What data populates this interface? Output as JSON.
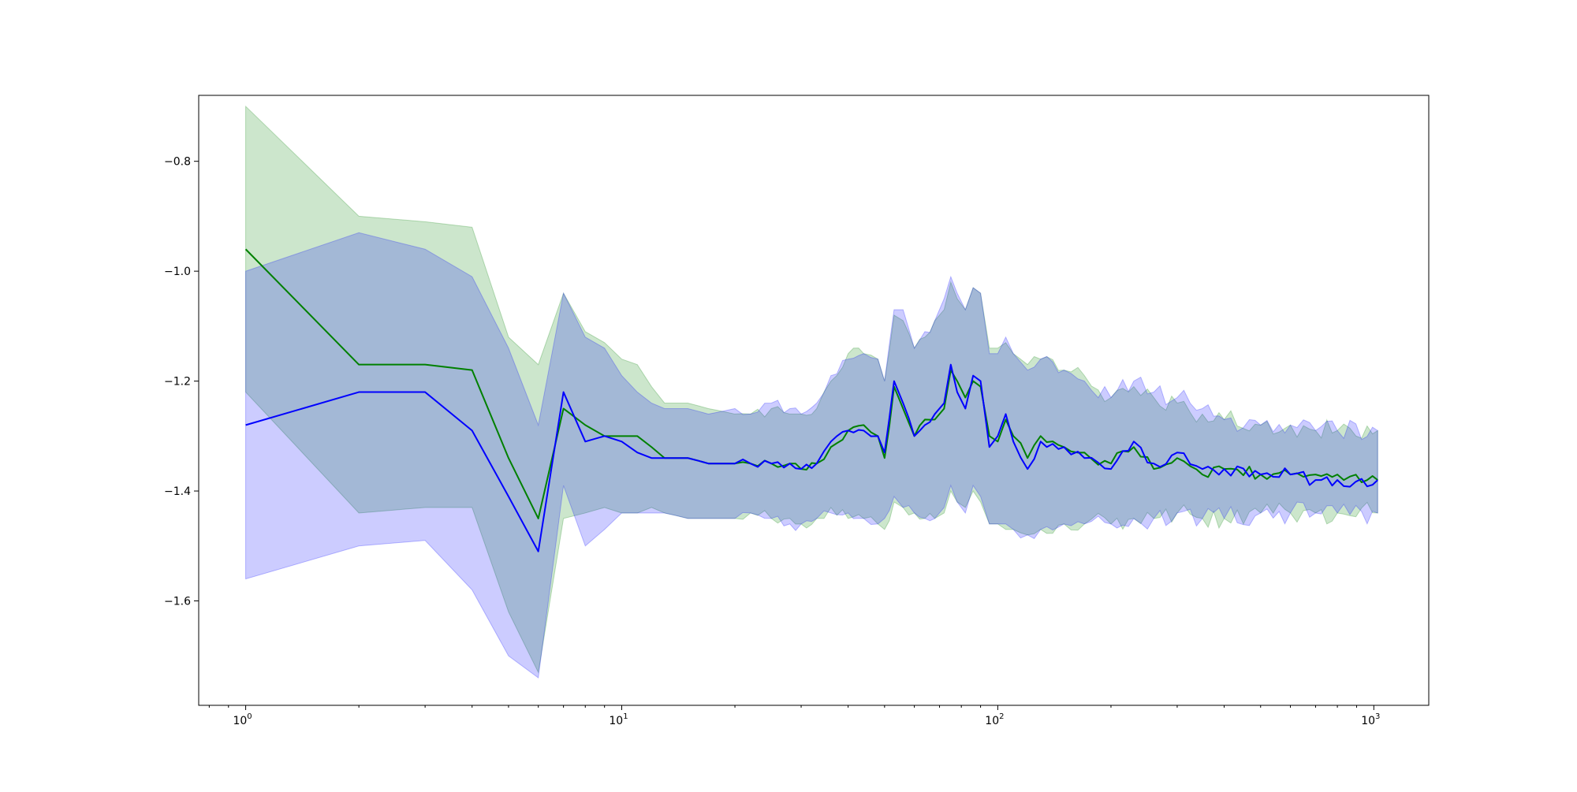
{
  "chart_data": {
    "type": "line",
    "title": "",
    "xlabel": "",
    "ylabel": "",
    "xscale": "log",
    "xlim": [
      0.75,
      1400
    ],
    "ylim": [
      -1.79,
      -0.68
    ],
    "grid": false,
    "legend": "none",
    "x_ticks": [
      {
        "value": 1,
        "base": "10",
        "exp": "0"
      },
      {
        "value": 10,
        "base": "10",
        "exp": "1"
      },
      {
        "value": 100,
        "base": "10",
        "exp": "2"
      },
      {
        "value": 1000,
        "base": "10",
        "exp": "3"
      }
    ],
    "y_ticks": [
      {
        "value": -0.8,
        "label": "−0.8"
      },
      {
        "value": -1.0,
        "label": "−1.0"
      },
      {
        "value": -1.2,
        "label": "−1.2"
      },
      {
        "value": -1.4,
        "label": "−1.4"
      },
      {
        "value": -1.6,
        "label": "−1.6"
      }
    ],
    "series": [
      {
        "color": "#008000",
        "band_color": "#008000",
        "band_opacity": 0.2,
        "anchors": [
          [
            1,
            -0.96,
            -1.22,
            -0.7
          ],
          [
            2,
            -1.17,
            -1.44,
            -0.9
          ],
          [
            3,
            -1.17,
            -1.43,
            -0.91
          ],
          [
            4,
            -1.18,
            -1.43,
            -0.92
          ],
          [
            5,
            -1.34,
            -1.62,
            -1.12
          ],
          [
            6,
            -1.45,
            -1.73,
            -1.17
          ],
          [
            7,
            -1.25,
            -1.45,
            -1.04
          ],
          [
            8,
            -1.28,
            -1.44,
            -1.11
          ],
          [
            9,
            -1.3,
            -1.43,
            -1.13
          ],
          [
            10,
            -1.3,
            -1.44,
            -1.16
          ],
          [
            11,
            -1.3,
            -1.44,
            -1.17
          ],
          [
            12,
            -1.32,
            -1.43,
            -1.21
          ],
          [
            13,
            -1.34,
            -1.44,
            -1.24
          ],
          [
            15,
            -1.34,
            -1.45,
            -1.24
          ],
          [
            17,
            -1.35,
            -1.45,
            -1.25
          ],
          [
            20,
            -1.35,
            -1.45,
            -1.26
          ],
          [
            22,
            -1.35,
            -1.44,
            -1.26
          ],
          [
            25,
            -1.35,
            -1.45,
            -1.25
          ],
          [
            28,
            -1.35,
            -1.45,
            -1.26
          ],
          [
            30,
            -1.36,
            -1.46,
            -1.26
          ],
          [
            33,
            -1.35,
            -1.45,
            -1.25
          ],
          [
            36,
            -1.32,
            -1.43,
            -1.2
          ],
          [
            40,
            -1.29,
            -1.45,
            -1.15
          ],
          [
            44,
            -1.28,
            -1.45,
            -1.15
          ],
          [
            48,
            -1.3,
            -1.46,
            -1.16
          ],
          [
            50,
            -1.34,
            -1.47,
            -1.2
          ],
          [
            53,
            -1.21,
            -1.42,
            -1.08
          ],
          [
            56,
            -1.25,
            -1.43,
            -1.09
          ],
          [
            60,
            -1.3,
            -1.44,
            -1.14
          ],
          [
            64,
            -1.27,
            -1.45,
            -1.12
          ],
          [
            68,
            -1.27,
            -1.45,
            -1.09
          ],
          [
            72,
            -1.25,
            -1.44,
            -1.07
          ],
          [
            75,
            -1.18,
            -1.4,
            -1.02
          ],
          [
            78,
            -1.2,
            -1.42,
            -1.05
          ],
          [
            82,
            -1.23,
            -1.43,
            -1.07
          ],
          [
            86,
            -1.2,
            -1.4,
            -1.03
          ],
          [
            90,
            -1.21,
            -1.42,
            -1.04
          ],
          [
            95,
            -1.3,
            -1.46,
            -1.14
          ],
          [
            100,
            -1.31,
            -1.46,
            -1.14
          ],
          [
            105,
            -1.27,
            -1.47,
            -1.13
          ],
          [
            110,
            -1.3,
            -1.47,
            -1.15
          ],
          [
            120,
            -1.34,
            -1.48,
            -1.17
          ],
          [
            130,
            -1.3,
            -1.47,
            -1.16
          ],
          [
            150,
            -1.32,
            -1.46,
            -1.18
          ],
          [
            170,
            -1.33,
            -1.46,
            -1.19
          ],
          [
            200,
            -1.35,
            -1.46,
            -1.23
          ],
          [
            230,
            -1.32,
            -1.45,
            -1.21
          ],
          [
            260,
            -1.36,
            -1.45,
            -1.23
          ],
          [
            300,
            -1.34,
            -1.44,
            -1.24
          ],
          [
            350,
            -1.37,
            -1.45,
            -1.26
          ],
          [
            400,
            -1.36,
            -1.45,
            -1.27
          ],
          [
            500,
            -1.37,
            -1.44,
            -1.28
          ],
          [
            600,
            -1.37,
            -1.44,
            -1.28
          ],
          [
            700,
            -1.37,
            -1.44,
            -1.29
          ],
          [
            800,
            -1.37,
            -1.44,
            -1.29
          ],
          [
            1024,
            -1.38,
            -1.44,
            -1.29
          ]
        ]
      },
      {
        "color": "#0000ff",
        "band_color": "#0000ff",
        "band_opacity": 0.2,
        "anchors": [
          [
            1,
            -1.28,
            -1.56,
            -1.0
          ],
          [
            2,
            -1.22,
            -1.5,
            -0.93
          ],
          [
            3,
            -1.22,
            -1.49,
            -0.96
          ],
          [
            4,
            -1.29,
            -1.58,
            -1.01
          ],
          [
            5,
            -1.41,
            -1.7,
            -1.14
          ],
          [
            6,
            -1.51,
            -1.74,
            -1.28
          ],
          [
            7,
            -1.22,
            -1.39,
            -1.04
          ],
          [
            8,
            -1.31,
            -1.5,
            -1.12
          ],
          [
            9,
            -1.3,
            -1.47,
            -1.14
          ],
          [
            10,
            -1.31,
            -1.44,
            -1.19
          ],
          [
            11,
            -1.33,
            -1.44,
            -1.22
          ],
          [
            12,
            -1.34,
            -1.44,
            -1.24
          ],
          [
            13,
            -1.34,
            -1.44,
            -1.25
          ],
          [
            15,
            -1.34,
            -1.45,
            -1.25
          ],
          [
            17,
            -1.35,
            -1.45,
            -1.26
          ],
          [
            20,
            -1.35,
            -1.45,
            -1.25
          ],
          [
            22,
            -1.35,
            -1.44,
            -1.26
          ],
          [
            25,
            -1.35,
            -1.45,
            -1.24
          ],
          [
            28,
            -1.35,
            -1.46,
            -1.25
          ],
          [
            30,
            -1.36,
            -1.46,
            -1.26
          ],
          [
            33,
            -1.35,
            -1.45,
            -1.24
          ],
          [
            36,
            -1.31,
            -1.44,
            -1.19
          ],
          [
            40,
            -1.29,
            -1.44,
            -1.16
          ],
          [
            44,
            -1.29,
            -1.45,
            -1.15
          ],
          [
            48,
            -1.3,
            -1.46,
            -1.16
          ],
          [
            50,
            -1.33,
            -1.45,
            -1.2
          ],
          [
            53,
            -1.2,
            -1.41,
            -1.07
          ],
          [
            56,
            -1.24,
            -1.43,
            -1.07
          ],
          [
            60,
            -1.3,
            -1.44,
            -1.14
          ],
          [
            64,
            -1.28,
            -1.45,
            -1.11
          ],
          [
            68,
            -1.26,
            -1.45,
            -1.09
          ],
          [
            72,
            -1.24,
            -1.43,
            -1.05
          ],
          [
            75,
            -1.17,
            -1.39,
            -1.01
          ],
          [
            78,
            -1.22,
            -1.42,
            -1.04
          ],
          [
            82,
            -1.25,
            -1.44,
            -1.07
          ],
          [
            86,
            -1.19,
            -1.39,
            -1.03
          ],
          [
            90,
            -1.2,
            -1.41,
            -1.04
          ],
          [
            95,
            -1.32,
            -1.46,
            -1.15
          ],
          [
            100,
            -1.3,
            -1.46,
            -1.15
          ],
          [
            105,
            -1.26,
            -1.46,
            -1.12
          ],
          [
            110,
            -1.31,
            -1.47,
            -1.15
          ],
          [
            120,
            -1.36,
            -1.48,
            -1.18
          ],
          [
            130,
            -1.31,
            -1.47,
            -1.16
          ],
          [
            150,
            -1.32,
            -1.46,
            -1.18
          ],
          [
            170,
            -1.34,
            -1.46,
            -1.2
          ],
          [
            200,
            -1.36,
            -1.46,
            -1.23
          ],
          [
            230,
            -1.31,
            -1.45,
            -1.2
          ],
          [
            260,
            -1.35,
            -1.45,
            -1.22
          ],
          [
            300,
            -1.33,
            -1.44,
            -1.23
          ],
          [
            350,
            -1.36,
            -1.45,
            -1.25
          ],
          [
            400,
            -1.36,
            -1.45,
            -1.27
          ],
          [
            500,
            -1.37,
            -1.44,
            -1.28
          ],
          [
            600,
            -1.37,
            -1.44,
            -1.28
          ],
          [
            700,
            -1.38,
            -1.44,
            -1.29
          ],
          [
            800,
            -1.38,
            -1.44,
            -1.29
          ],
          [
            1024,
            -1.38,
            -1.44,
            -1.29
          ]
        ]
      }
    ]
  }
}
